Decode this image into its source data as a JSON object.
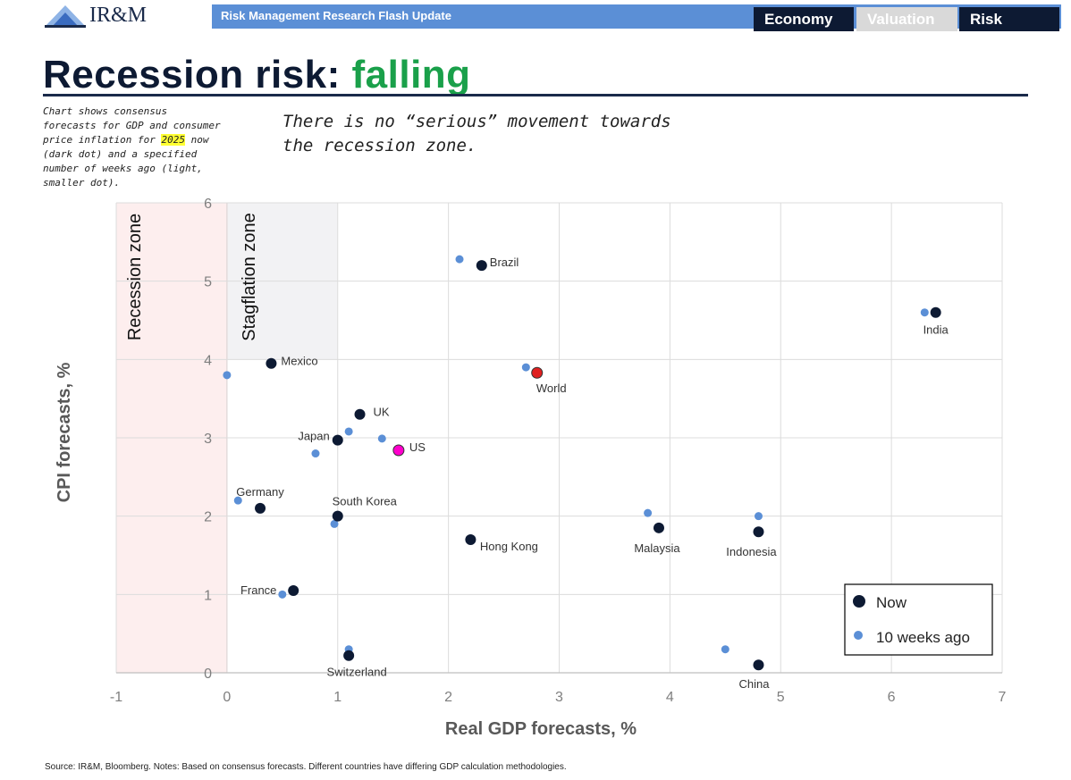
{
  "header": {
    "logo_text": "IR&M",
    "bar_title": "Risk Management Research Flash Update",
    "tabs": [
      {
        "label": "Economy"
      },
      {
        "label": "Valuation"
      },
      {
        "label": "Risk"
      }
    ]
  },
  "title": {
    "prefix": "Recession risk: ",
    "accent": "falling",
    "accent_color": "#1aa04a"
  },
  "note": {
    "before": "Chart shows consensus forecasts for GDP and consumer price inflation for ",
    "highlight": "2025",
    "after": " now (dark dot) and a specified number of weeks ago (light, smaller dot)."
  },
  "callout": "There is no “serious” movement towards the recession zone.",
  "source": "Source: IR&M, Bloomberg. Notes: Based on consensus forecasts. Different countries have differing GDP calculation methodologies.",
  "chart_data": {
    "type": "scatter",
    "xlabel": "Real GDP forecasts, %",
    "ylabel": "CPI forecasts, %",
    "xlim": [
      -1,
      7
    ],
    "ylim": [
      0,
      6
    ],
    "xticks": [
      "-1",
      "0",
      "1",
      "2",
      "3",
      "4",
      "5",
      "6",
      "7"
    ],
    "yticks": [
      "0",
      "1",
      "2",
      "3",
      "4",
      "5",
      "6"
    ],
    "zones": [
      {
        "label": "Recession zone",
        "x_range": [
          -1,
          0
        ],
        "y_range": [
          0,
          6
        ],
        "color": "#fdeeee"
      },
      {
        "label": "Stagflation zone",
        "x_range": [
          0,
          1
        ],
        "y_range": [
          4,
          6
        ],
        "color": "#f2f2f4"
      }
    ],
    "legend": {
      "position": "bottom-right",
      "entries": [
        {
          "name": "Now",
          "color": "#0d1a33"
        },
        {
          "name": "10 weeks ago",
          "color": "#5b8fd6"
        }
      ]
    },
    "series": [
      {
        "name": "Now",
        "color": "#0d1a33",
        "points": [
          {
            "label": "Brazil",
            "x": 2.3,
            "y": 5.2
          },
          {
            "label": "India",
            "x": 6.4,
            "y": 4.6
          },
          {
            "label": "Mexico",
            "x": 0.4,
            "y": 3.95
          },
          {
            "label": "World",
            "x": 2.8,
            "y": 3.83,
            "color": "#e02020"
          },
          {
            "label": "UK",
            "x": 1.2,
            "y": 3.3
          },
          {
            "label": "Japan",
            "x": 1.0,
            "y": 2.97
          },
          {
            "label": "US",
            "x": 1.55,
            "y": 2.84,
            "color": "#ff00cc"
          },
          {
            "label": "Germany",
            "x": 0.3,
            "y": 2.1
          },
          {
            "label": "South Korea",
            "x": 1.0,
            "y": 2.0
          },
          {
            "label": "Hong Kong",
            "x": 2.2,
            "y": 1.7
          },
          {
            "label": "Malaysia",
            "x": 3.9,
            "y": 1.85
          },
          {
            "label": "Indonesia",
            "x": 4.8,
            "y": 1.8
          },
          {
            "label": "France",
            "x": 0.6,
            "y": 1.05
          },
          {
            "label": "Switzerland",
            "x": 1.1,
            "y": 0.22
          },
          {
            "label": "China",
            "x": 4.8,
            "y": 0.1
          }
        ]
      },
      {
        "name": "10 weeks ago",
        "color": "#5b8fd6",
        "points": [
          {
            "label": "Brazil",
            "x": 2.1,
            "y": 5.28
          },
          {
            "label": "India",
            "x": 6.3,
            "y": 4.6
          },
          {
            "label": "Mexico",
            "x": 0.0,
            "y": 3.8
          },
          {
            "label": "World",
            "x": 2.7,
            "y": 3.9
          },
          {
            "label": "UK",
            "x": 1.1,
            "y": 3.08
          },
          {
            "label": "Japan",
            "x": 0.8,
            "y": 2.8
          },
          {
            "label": "US",
            "x": 1.4,
            "y": 2.99
          },
          {
            "label": "Germany",
            "x": 0.1,
            "y": 2.2
          },
          {
            "label": "South Korea",
            "x": 0.97,
            "y": 1.9
          },
          {
            "label": "Hong Kong",
            "x": 2.2,
            "y": 1.7
          },
          {
            "label": "Malaysia",
            "x": 3.8,
            "y": 2.04
          },
          {
            "label": "Indonesia",
            "x": 4.8,
            "y": 2.0
          },
          {
            "label": "France",
            "x": 0.5,
            "y": 1.0
          },
          {
            "label": "Switzerland",
            "x": 1.1,
            "y": 0.3
          },
          {
            "label": "China",
            "x": 4.5,
            "y": 0.3
          }
        ]
      }
    ]
  }
}
